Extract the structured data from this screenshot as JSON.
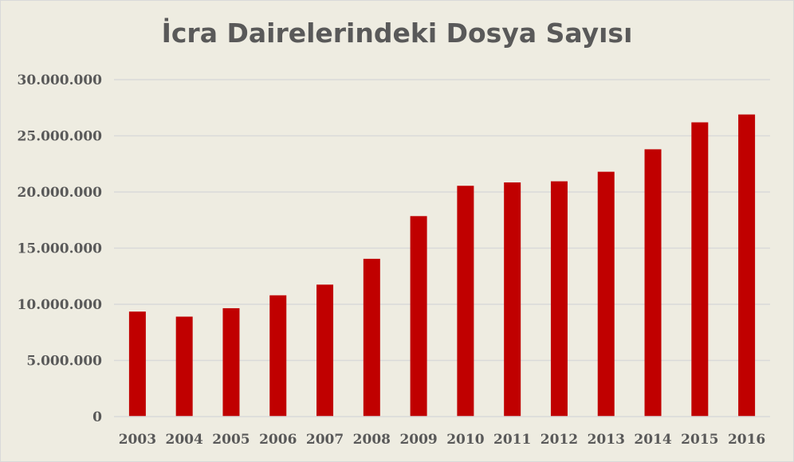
{
  "chart_data": {
    "type": "bar",
    "title": "İcra Dairelerindeki Dosya Sayısı",
    "xlabel": "",
    "ylabel": "",
    "categories": [
      "2003",
      "2004",
      "2005",
      "2006",
      "2007",
      "2008",
      "2009",
      "2010",
      "2011",
      "2012",
      "2013",
      "2014",
      "2015",
      "2016"
    ],
    "values": [
      9350000,
      8900000,
      9650000,
      10800000,
      11750000,
      14050000,
      17850000,
      20550000,
      20850000,
      20950000,
      21800000,
      23800000,
      26200000,
      26900000
    ],
    "ylim": [
      0,
      30000000
    ],
    "yticks": [
      0,
      5000000,
      10000000,
      15000000,
      20000000,
      25000000,
      30000000
    ],
    "ytick_labels": [
      "0",
      "5.000.000",
      "10.000.000",
      "15.000.000",
      "20.000.000",
      "25.000.000",
      "30.000.000"
    ],
    "grid": true,
    "legend": "none",
    "colors": {
      "bar": "#c00000",
      "grid": "#d9d9d9",
      "background": "#eeece1",
      "text": "#595959"
    }
  }
}
